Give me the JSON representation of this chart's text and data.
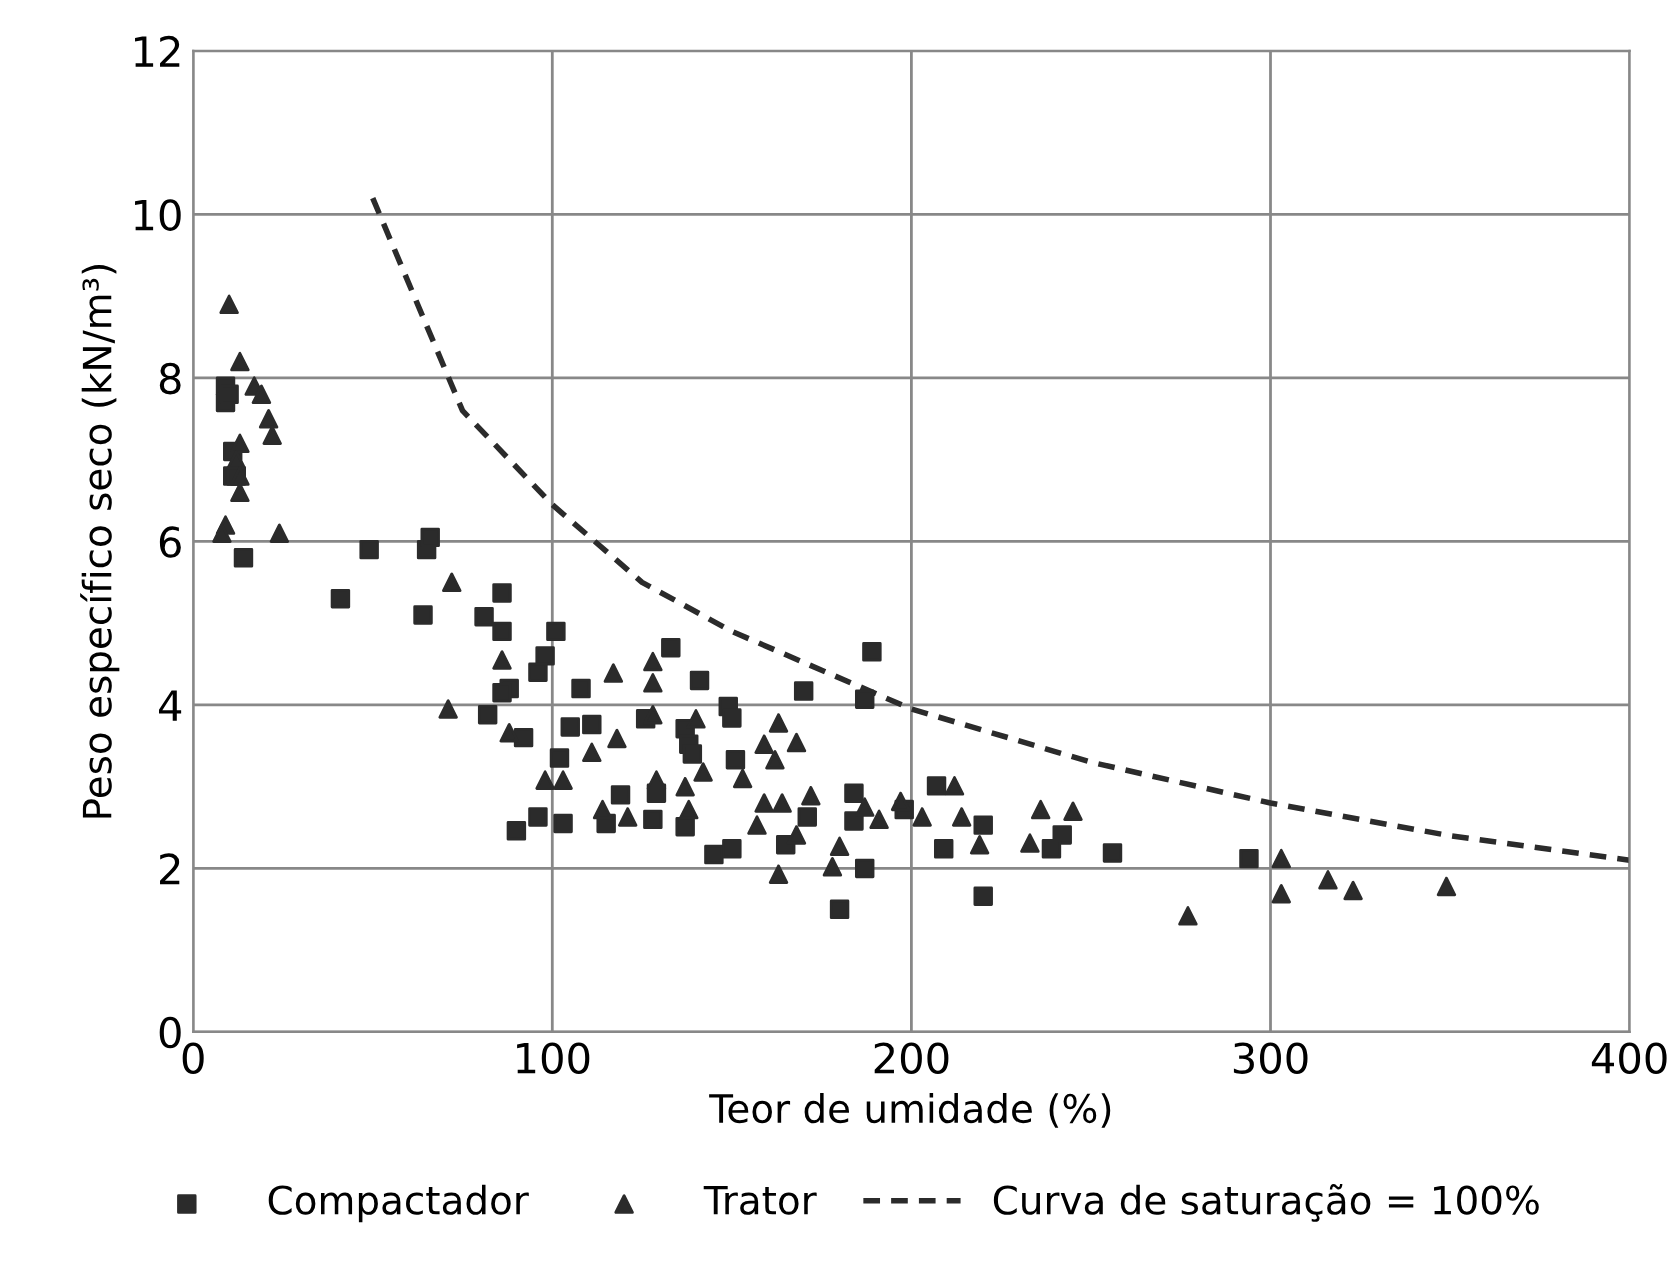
{
  "chart_data": {
    "type": "scatter",
    "xlabel": "Teor de umidade (%)",
    "ylabel": "Peso específico seco (kN/m³)",
    "xlim": [
      0,
      400
    ],
    "xticks": [
      0,
      100,
      200,
      300,
      400
    ],
    "ylim": [
      0,
      12
    ],
    "yticks": [
      0,
      2,
      4,
      6,
      8,
      10,
      12
    ],
    "grid": true,
    "legend": "bottom",
    "series": [
      {
        "name": "Compactador",
        "color": "#2b2b2b",
        "marker": "square",
        "x": [
          9,
          9,
          10,
          11,
          11,
          12,
          14,
          41,
          49,
          64,
          65,
          66,
          86,
          81,
          86,
          101,
          98,
          96,
          88,
          86,
          82,
          92,
          108,
          105,
          111,
          102,
          119,
          115,
          128,
          90,
          96,
          103,
          133,
          141,
          126,
          149,
          150,
          137,
          138,
          139,
          129,
          137,
          151,
          145,
          150,
          165,
          170,
          189,
          187,
          184,
          184,
          171,
          187,
          180,
          198,
          207,
          209,
          220,
          220,
          242,
          239,
          256,
          294
        ],
        "values": [
          7.9,
          7.7,
          7.8,
          7.1,
          6.8,
          6.8,
          5.8,
          5.3,
          5.9,
          5.1,
          5.9,
          6.05,
          5.37,
          5.08,
          4.9,
          4.9,
          4.6,
          4.4,
          4.2,
          4.15,
          3.88,
          3.6,
          4.2,
          3.73,
          3.76,
          3.35,
          2.9,
          2.55,
          2.6,
          2.46,
          2.63,
          2.55,
          4.7,
          4.3,
          3.83,
          3.98,
          3.84,
          3.71,
          3.52,
          3.4,
          2.92,
          2.51,
          3.33,
          2.17,
          2.24,
          2.29,
          4.17,
          4.65,
          4.07,
          2.92,
          2.58,
          2.63,
          2.0,
          1.5,
          2.72,
          3.01,
          2.24,
          2.53,
          1.66,
          2.41,
          2.24,
          2.19,
          2.12
        ]
      },
      {
        "name": "Trator",
        "color": "#2b2b2b",
        "marker": "triangle",
        "x": [
          10,
          13,
          17,
          19,
          21,
          22,
          13,
          12,
          13,
          13,
          9,
          8,
          24,
          72,
          71,
          86,
          88,
          117,
          128,
          128,
          128,
          118,
          111,
          98,
          103,
          114,
          121,
          129,
          137,
          138,
          140,
          142,
          153,
          163,
          159,
          168,
          162,
          159,
          164,
          172,
          157,
          168,
          180,
          178,
          163,
          187,
          191,
          197,
          203,
          212,
          214,
          219,
          236,
          245,
          233,
          303,
          303,
          316,
          323,
          349,
          277
        ],
        "values": [
          8.9,
          8.2,
          7.9,
          7.8,
          7.5,
          7.3,
          7.2,
          7.0,
          6.8,
          6.6,
          6.2,
          6.1,
          6.1,
          5.5,
          3.95,
          4.55,
          3.66,
          4.39,
          4.53,
          4.27,
          3.88,
          3.59,
          3.42,
          3.08,
          3.08,
          2.72,
          2.63,
          3.08,
          3.0,
          2.72,
          3.83,
          3.18,
          3.1,
          3.78,
          3.52,
          3.54,
          3.33,
          2.8,
          2.8,
          2.89,
          2.53,
          2.41,
          2.27,
          2.02,
          1.93,
          2.75,
          2.6,
          2.82,
          2.63,
          3.01,
          2.63,
          2.29,
          2.72,
          2.7,
          2.31,
          2.12,
          1.69,
          1.86,
          1.73,
          1.78,
          1.42
        ]
      },
      {
        "name": "Curva de saturação = 100%",
        "type": "line",
        "color": "#2b2b2b",
        "line_style": "dashed",
        "marker": "none",
        "x": [
          50,
          75,
          100,
          125,
          150,
          200,
          250,
          300,
          350,
          400
        ],
        "values": [
          10.2,
          7.6,
          6.45,
          5.5,
          4.9,
          3.95,
          3.3,
          2.8,
          2.4,
          2.1
        ]
      }
    ]
  }
}
